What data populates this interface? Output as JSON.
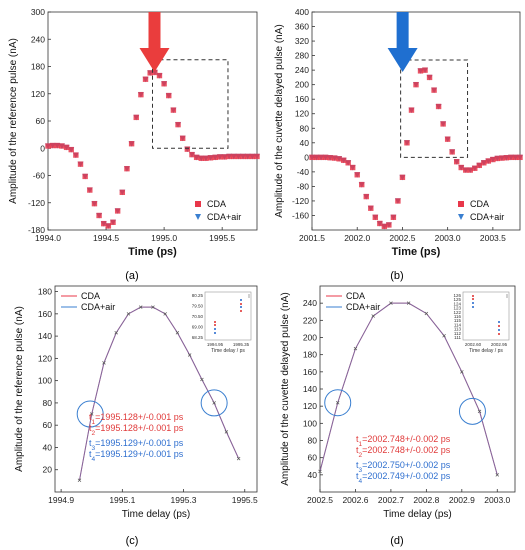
{
  "colors": {
    "cda": "#e8374a",
    "cda_air": "#3a7fd0",
    "red_arrow": "#ea3d3d",
    "blue_arrow": "#1f6fd0",
    "circle": "#3a7fd0",
    "box": "#333333",
    "blue_text": "#2f6fcf",
    "red_text": "#e03a3a"
  },
  "chart_data": [
    {
      "panel": "(a)",
      "type": "scatter",
      "xlabel": "Time (ps)",
      "ylabel": "Amplitude of the reference pulse (nA)",
      "xlim": [
        1994.0,
        1995.8
      ],
      "ylim": [
        -180,
        300
      ],
      "xticks": [
        "1994.0",
        "1994.5",
        "1995.0",
        "1995.5"
      ],
      "xtick_values": [
        1994.0,
        1994.5,
        1995.0,
        1995.5
      ],
      "yticks": [
        "-180",
        "-120",
        "-60",
        "0",
        "60",
        "120",
        "180",
        "240",
        "300"
      ],
      "ytick_values": [
        -180,
        -120,
        -60,
        0,
        60,
        120,
        180,
        240,
        300
      ],
      "arrow": "red",
      "zoom_box": {
        "x": [
          1994.9,
          1995.55
        ],
        "y": [
          0,
          195
        ]
      },
      "legend": [
        "CDA",
        "CDA+air"
      ],
      "legend_position": "bottom-right",
      "x": [
        1994.0,
        1994.04,
        1994.08,
        1994.12,
        1994.16,
        1994.2,
        1994.24,
        1994.28,
        1994.32,
        1994.36,
        1994.4,
        1994.44,
        1994.48,
        1994.52,
        1994.56,
        1994.6,
        1994.64,
        1994.68,
        1994.72,
        1994.76,
        1994.8,
        1994.84,
        1994.88,
        1994.92,
        1994.96,
        1995.0,
        1995.04,
        1995.08,
        1995.12,
        1995.16,
        1995.2,
        1995.24,
        1995.28,
        1995.32,
        1995.36,
        1995.4,
        1995.44,
        1995.48,
        1995.52,
        1995.56,
        1995.6,
        1995.64,
        1995.68,
        1995.72,
        1995.76,
        1995.8
      ],
      "series": [
        {
          "name": "CDA",
          "marker": "square",
          "color": "#e8374a",
          "values": [
            5,
            6,
            6,
            5,
            2,
            -3,
            -15,
            -35,
            -62,
            -92,
            -122,
            -148,
            -166,
            -171,
            -163,
            -138,
            -97,
            -45,
            10,
            68,
            118,
            152,
            166,
            167,
            160,
            142,
            116,
            84,
            52,
            22,
            -2,
            -14,
            -20,
            -22,
            -22,
            -21,
            -20,
            -19,
            -19,
            -18,
            -18,
            -18,
            -18,
            -18,
            -18,
            -18
          ]
        },
        {
          "name": "CDA+air",
          "marker": "triangle-down",
          "color": "#3a7fd0",
          "values": [
            5,
            6,
            6,
            5,
            2,
            -3,
            -15,
            -35,
            -62,
            -92,
            -122,
            -148,
            -166,
            -171,
            -163,
            -138,
            -97,
            -45,
            10,
            68,
            118,
            152,
            166,
            167,
            160,
            142,
            116,
            84,
            52,
            22,
            -2,
            -14,
            -20,
            -22,
            -22,
            -21,
            -20,
            -19,
            -19,
            -18,
            -18,
            -18,
            -18,
            -18,
            -18,
            -18
          ]
        }
      ]
    },
    {
      "panel": "(b)",
      "type": "scatter",
      "xlabel": "Time (ps)",
      "ylabel": "Amplitude of the cuvette delayed pulse (nA)",
      "xlim": [
        2001.5,
        2003.8
      ],
      "ylim": [
        -200,
        400
      ],
      "xticks": [
        "2001.5",
        "2002.0",
        "2002.5",
        "2003.0",
        "2003.5"
      ],
      "xtick_values": [
        2001.5,
        2002.0,
        2002.5,
        2003.0,
        2003.5
      ],
      "yticks": [
        "-160",
        "-120",
        "-80",
        "-40",
        "0",
        "40",
        "80",
        "120",
        "160",
        "200",
        "240",
        "280",
        "320",
        "360",
        "400"
      ],
      "ytick_values": [
        -160,
        -120,
        -80,
        -40,
        0,
        40,
        80,
        120,
        160,
        200,
        240,
        280,
        320,
        360,
        400
      ],
      "arrow": "blue",
      "zoom_box": {
        "x": [
          2002.48,
          2003.22
        ],
        "y": [
          0,
          268
        ]
      },
      "legend": [
        "CDA",
        "CDA+air"
      ],
      "legend_position": "bottom-right",
      "x": [
        2001.5,
        2001.55,
        2001.6,
        2001.65,
        2001.7,
        2001.75,
        2001.8,
        2001.85,
        2001.9,
        2001.95,
        2002.0,
        2002.05,
        2002.1,
        2002.15,
        2002.2,
        2002.25,
        2002.3,
        2002.35,
        2002.4,
        2002.45,
        2002.5,
        2002.55,
        2002.6,
        2002.65,
        2002.7,
        2002.75,
        2002.8,
        2002.85,
        2002.9,
        2002.95,
        2003.0,
        2003.05,
        2003.1,
        2003.15,
        2003.2,
        2003.25,
        2003.3,
        2003.35,
        2003.4,
        2003.45,
        2003.5,
        2003.55,
        2003.6,
        2003.65,
        2003.7,
        2003.75,
        2003.8
      ],
      "series": [
        {
          "name": "CDA",
          "marker": "square",
          "color": "#e8374a",
          "values": [
            0,
            0,
            0,
            0,
            -1,
            -2,
            -4,
            -8,
            -15,
            -28,
            -48,
            -75,
            -108,
            -140,
            -165,
            -182,
            -190,
            -186,
            -165,
            -120,
            -55,
            40,
            130,
            200,
            238,
            240,
            220,
            185,
            140,
            92,
            50,
            15,
            -12,
            -28,
            -35,
            -35,
            -30,
            -22,
            -15,
            -10,
            -6,
            -3,
            -2,
            -1,
            0,
            0,
            0
          ]
        },
        {
          "name": "CDA+air",
          "marker": "triangle-down",
          "color": "#3a7fd0",
          "values": [
            0,
            0,
            0,
            0,
            -1,
            -2,
            -4,
            -8,
            -15,
            -28,
            -48,
            -75,
            -108,
            -140,
            -165,
            -182,
            -190,
            -186,
            -165,
            -120,
            -55,
            40,
            130,
            200,
            238,
            240,
            220,
            185,
            140,
            92,
            50,
            15,
            -12,
            -28,
            -35,
            -35,
            -30,
            -22,
            -15,
            -10,
            -6,
            -3,
            -2,
            -1,
            0,
            0,
            0
          ]
        }
      ]
    },
    {
      "panel": "(c)",
      "type": "line",
      "xlabel": "Time delay (ps)",
      "ylabel": "Amplitude of the reference pulse (nA)",
      "xlim": [
        1994.88,
        1995.54
      ],
      "ylim": [
        0,
        185
      ],
      "xticks": [
        "1994.9",
        "1995.1",
        "1995.3",
        "1995.5"
      ],
      "xtick_values": [
        1994.9,
        1995.1,
        1995.3,
        1995.5
      ],
      "yticks": [
        "20",
        "40",
        "60",
        "80",
        "100",
        "120",
        "140",
        "160",
        "180"
      ],
      "ytick_values": [
        20,
        40,
        60,
        80,
        100,
        120,
        140,
        160,
        180
      ],
      "legend": [
        "CDA",
        "CDA+air"
      ],
      "legend_position": "top-left",
      "x": [
        1994.96,
        1995.0,
        1995.04,
        1995.08,
        1995.12,
        1995.16,
        1995.2,
        1995.24,
        1995.28,
        1995.32,
        1995.36,
        1995.4,
        1995.44,
        1995.48
      ],
      "series": [
        {
          "name": "CDA",
          "color": "#e8374a",
          "values": [
            10.5,
            70,
            116,
            143,
            160,
            166,
            166,
            160,
            143,
            123,
            101,
            80,
            54,
            30
          ]
        },
        {
          "name": "CDA+air",
          "color": "#3a7fd0",
          "values": [
            10.5,
            70,
            116,
            143,
            160,
            166,
            166,
            160,
            143,
            123,
            101,
            80,
            54,
            30
          ]
        }
      ],
      "circles": [
        [
          1994.995,
          70
        ],
        [
          1995.4,
          80
        ]
      ],
      "annotations": [
        {
          "text": "t1=1995.128+/-0.001 ps",
          "color": "red"
        },
        {
          "text": "t2=1995.128+/-0.001 ps",
          "color": "red"
        },
        {
          "text": "t3=1995.129+/-0.001 ps",
          "color": "blue"
        },
        {
          "text": "t4=1995.129+/-0.001 ps",
          "color": "blue"
        }
      ],
      "inset": {
        "xticks": [
          "1994.95",
          "1995.35"
        ],
        "yticks": [
          "80.25",
          "79.50",
          "70.50",
          "69.00",
          "68.25"
        ],
        "xlabel": "Time delay / ps"
      }
    },
    {
      "panel": "(d)",
      "type": "line",
      "xlabel": "Time delay (ps)",
      "ylabel": "Amplitude of the cuvette delayed pulse (nA)",
      "xlim": [
        2002.5,
        2003.05
      ],
      "ylim": [
        20,
        260
      ],
      "xticks": [
        "2002.5",
        "2002.6",
        "2002.7",
        "2002.8",
        "2002.9",
        "2003.0"
      ],
      "xtick_values": [
        2002.5,
        2002.6,
        2002.7,
        2002.8,
        2002.9,
        2003.0
      ],
      "yticks": [
        "40",
        "60",
        "80",
        "100",
        "120",
        "140",
        "160",
        "180",
        "200",
        "220",
        "240"
      ],
      "ytick_values": [
        40,
        60,
        80,
        100,
        120,
        140,
        160,
        180,
        200,
        220,
        240
      ],
      "legend": [
        "CDA",
        "CDA+air"
      ],
      "legend_position": "top-left",
      "x": [
        2002.5,
        2002.55,
        2002.6,
        2002.65,
        2002.7,
        2002.75,
        2002.8,
        2002.85,
        2002.9,
        2002.95,
        2003.0
      ],
      "series": [
        {
          "name": "CDA",
          "color": "#e8374a",
          "values": [
            44,
            124,
            187,
            225,
            240,
            240,
            228,
            202,
            160,
            114,
            40
          ]
        },
        {
          "name": "CDA+air",
          "color": "#3a7fd0",
          "values": [
            44,
            124,
            187,
            225,
            240,
            240,
            228,
            202,
            160,
            114,
            40
          ]
        }
      ],
      "circles": [
        [
          2002.55,
          124
        ],
        [
          2002.93,
          114
        ]
      ],
      "annotations": [
        {
          "text": "t1=2002.748+/-0.002 ps",
          "color": "red"
        },
        {
          "text": "t2=2002.748+/-0.002 ps",
          "color": "red"
        },
        {
          "text": "t3=2002.750+/-0.002 ps",
          "color": "blue"
        },
        {
          "text": "t4=2002.749+/-0.002 ps",
          "color": "blue"
        }
      ],
      "inset": {
        "xticks": [
          "2002.60",
          "2002.95"
        ],
        "yticks": [
          "126",
          "125",
          "124",
          "123",
          "122",
          "116",
          "115",
          "114",
          "113",
          "112",
          "111"
        ],
        "xlabel": "Time delay / ps"
      }
    }
  ]
}
